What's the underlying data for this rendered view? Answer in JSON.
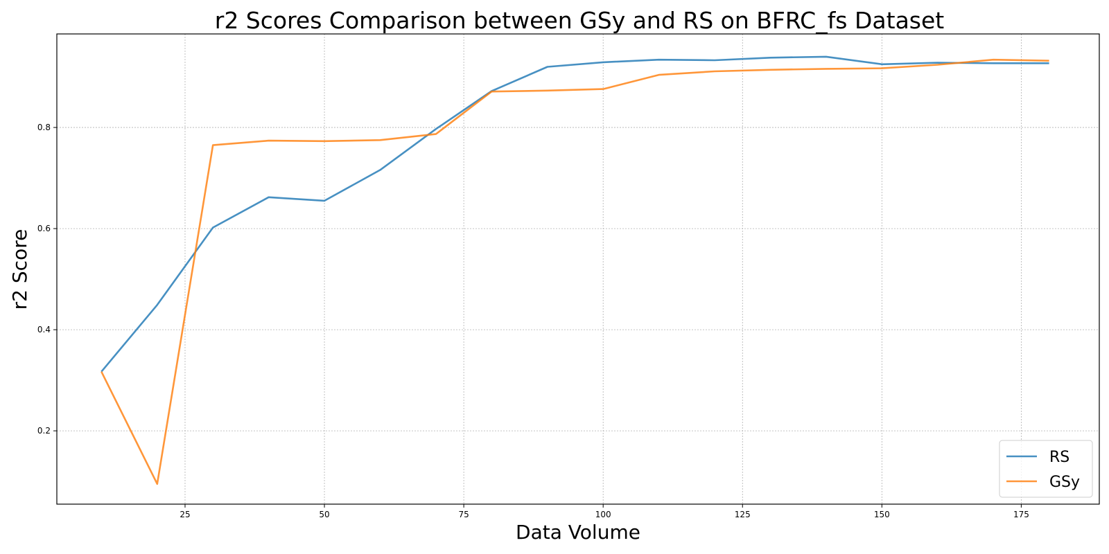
{
  "chart_data": {
    "type": "line",
    "title": "r2 Scores Comparison between GSy and RS on BFRC_fs Dataset",
    "xlabel": "Data Volume",
    "ylabel": "r2 Score",
    "xlim": [
      2,
      189
    ],
    "ylim": [
      0.055,
      0.985
    ],
    "xticks": [
      25,
      50,
      75,
      100,
      125,
      150,
      175
    ],
    "yticks": [
      0.2,
      0.4,
      0.6,
      0.8
    ],
    "grid": true,
    "legend_position": "bottom-right",
    "x": [
      10,
      20,
      30,
      40,
      50,
      60,
      70,
      80,
      90,
      100,
      110,
      120,
      130,
      140,
      150,
      160,
      170,
      180
    ],
    "series": [
      {
        "name": "RS",
        "color": "#1f77b4",
        "values": [
          0.317,
          0.449,
          0.602,
          0.662,
          0.655,
          0.716,
          0.797,
          0.872,
          0.92,
          0.929,
          0.934,
          0.933,
          0.938,
          0.94,
          0.925,
          0.928,
          0.927,
          0.927
        ]
      },
      {
        "name": "GSy",
        "color": "#ff7f0e",
        "values": [
          0.317,
          0.095,
          0.765,
          0.774,
          0.773,
          0.775,
          0.787,
          0.871,
          0.873,
          0.876,
          0.904,
          0.911,
          0.914,
          0.916,
          0.917,
          0.924,
          0.934,
          0.932
        ]
      }
    ]
  }
}
